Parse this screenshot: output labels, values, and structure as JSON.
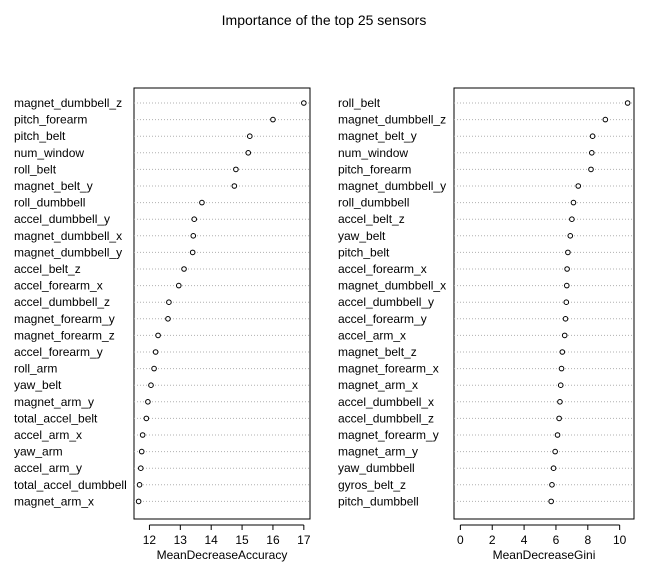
{
  "title": "Importance of the top 25 sensors",
  "chart_data": [
    {
      "type": "dotchart",
      "title": "",
      "xlabel": "MeanDecreaseAccuracy",
      "ylabel": "",
      "xlim": [
        11.5,
        17.2
      ],
      "xticks": [
        12,
        13,
        14,
        15,
        16,
        17
      ],
      "grid": "dotted-horizontal",
      "categories": [
        "magnet_dumbbell_z",
        "pitch_forearm",
        "pitch_belt",
        "num_window",
        "roll_belt",
        "magnet_belt_y",
        "roll_dumbbell",
        "accel_dumbbell_y",
        "magnet_dumbbell_x",
        "magnet_dumbbell_y",
        "accel_belt_z",
        "accel_forearm_x",
        "accel_dumbbell_z",
        "magnet_forearm_y",
        "magnet_forearm_z",
        "accel_forearm_y",
        "roll_arm",
        "yaw_belt",
        "magnet_arm_y",
        "total_accel_belt",
        "accel_arm_x",
        "yaw_arm",
        "accel_arm_y",
        "total_accel_dumbbell",
        "magnet_arm_x"
      ],
      "values": [
        17.0,
        16.0,
        15.25,
        15.2,
        14.8,
        14.75,
        13.7,
        13.45,
        13.42,
        13.4,
        13.12,
        12.95,
        12.63,
        12.6,
        12.28,
        12.2,
        12.15,
        12.05,
        11.95,
        11.9,
        11.78,
        11.75,
        11.72,
        11.68,
        11.65
      ]
    },
    {
      "type": "dotchart",
      "title": "",
      "xlabel": "MeanDecreaseGini",
      "ylabel": "",
      "xlim": [
        -0.4,
        10.9
      ],
      "xticks": [
        0,
        2,
        4,
        6,
        8,
        10
      ],
      "grid": "dotted-horizontal",
      "categories": [
        "roll_belt",
        "magnet_dumbbell_z",
        "magnet_belt_y",
        "num_window",
        "pitch_forearm",
        "magnet_dumbbell_y",
        "roll_dumbbell",
        "accel_belt_z",
        "yaw_belt",
        "pitch_belt",
        "accel_forearm_x",
        "magnet_dumbbell_x",
        "accel_dumbbell_y",
        "accel_forearm_y",
        "accel_arm_x",
        "magnet_belt_z",
        "magnet_forearm_x",
        "magnet_arm_x",
        "accel_dumbbell_x",
        "accel_dumbbell_z",
        "magnet_forearm_y",
        "magnet_arm_y",
        "yaw_dumbbell",
        "gyros_belt_z",
        "pitch_dumbbell"
      ],
      "values": [
        10.5,
        9.1,
        8.3,
        8.25,
        8.2,
        7.4,
        7.1,
        7.0,
        6.9,
        6.75,
        6.7,
        6.68,
        6.65,
        6.6,
        6.55,
        6.4,
        6.35,
        6.3,
        6.25,
        6.2,
        6.1,
        5.95,
        5.85,
        5.75,
        5.7
      ]
    }
  ]
}
